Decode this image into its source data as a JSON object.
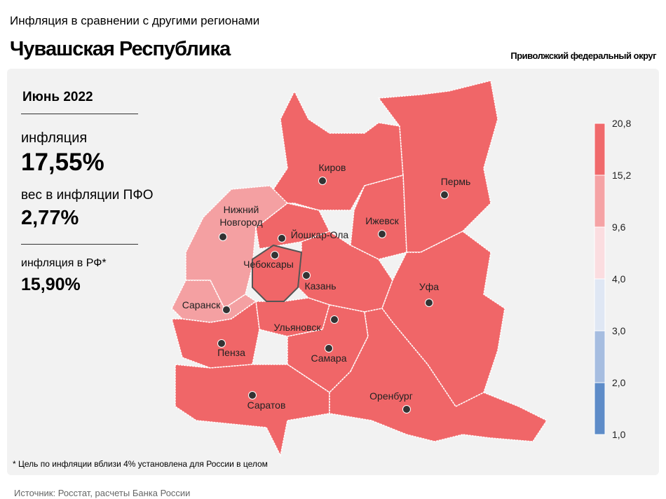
{
  "header": {
    "subtitle": "Инфляция в сравнении с другими регионами",
    "title": "Чувашская Республика",
    "district": "Приволжский федеральный округ"
  },
  "stats": {
    "period": "Июнь 2022",
    "inflation_label": "инфляция",
    "inflation_value": "17,55%",
    "weight_label": "вес в инфляции ПФО",
    "weight_value": "2,77%",
    "rf_label": "инфляция в РФ*",
    "rf_value": "15,90%"
  },
  "cities": [
    "Киров",
    "Пермь",
    "Ижевск",
    "Нижний Новгород",
    "Йошкар-Ола",
    "Чебоксары",
    "Казань",
    "Уфа",
    "Саранск",
    "Ульяновск",
    "Пенза",
    "Самара",
    "Саратов",
    "Оренбург"
  ],
  "legend": {
    "ticks": [
      "20,8",
      "15,2",
      "9,6",
      "4,0",
      "3,0",
      "2,0",
      "1,0"
    ],
    "colors": [
      "#f06a6c",
      "#f5a3a5",
      "#fbdde0",
      "#dfe7f4",
      "#a6bde0",
      "#5e8cc8"
    ]
  },
  "footnote": "* Цель по инфляции вблизи 4% установлена для России в целом",
  "source": "Источник: Росстат, расчеты Банка России"
}
